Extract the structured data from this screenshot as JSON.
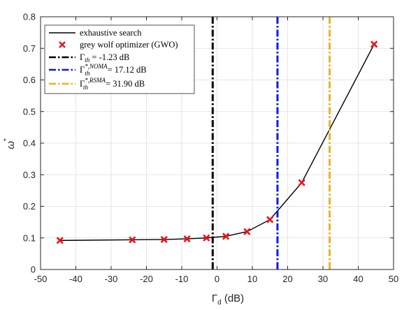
{
  "chart_data": {
    "type": "line",
    "xlabel": "Γ",
    "xlabel_sub": "d",
    "xlabel_unit": "(dB)",
    "ylabel": "ω",
    "ylabel_sup": "*",
    "xlim": [
      -50,
      50
    ],
    "ylim": [
      0,
      0.8
    ],
    "xticks": [
      -50,
      -40,
      -30,
      -20,
      -10,
      0,
      10,
      20,
      30,
      40,
      50
    ],
    "yticks": [
      0,
      0.1,
      0.2,
      0.3,
      0.4,
      0.5,
      0.6,
      0.7,
      0.8
    ],
    "xtick_labels": [
      "-50",
      "-40",
      "-30",
      "-20",
      "-10",
      "0",
      "10",
      "20",
      "30",
      "40",
      "50"
    ],
    "ytick_labels": [
      "0",
      "0.1",
      "0.2",
      "0.3",
      "0.4",
      "0.5",
      "0.6",
      "0.7",
      "0.8"
    ],
    "grid": true,
    "legend_position": "top-left",
    "series": [
      {
        "name": "exhaustive search",
        "style": "line",
        "color": "#000000",
        "x": [
          -44.5,
          -24,
          -15,
          -8.5,
          -3,
          2.5,
          8.5,
          15,
          24,
          44.5
        ],
        "y": [
          0.092,
          0.094,
          0.095,
          0.097,
          0.1,
          0.105,
          0.12,
          0.158,
          0.275,
          0.713
        ]
      },
      {
        "name": "grey wolf optimizer (GWO)",
        "style": "marker-x",
        "color": "#e8141b",
        "x": [
          -44.5,
          -24,
          -15,
          -8.5,
          -3,
          2.5,
          8.5,
          15,
          24,
          44.5
        ],
        "y": [
          0.092,
          0.094,
          0.095,
          0.097,
          0.1,
          0.105,
          0.12,
          0.158,
          0.275,
          0.713
        ]
      }
    ],
    "vlines": [
      {
        "x": -1.23,
        "color": "#000000",
        "label_main": "Γ",
        "label_sub": "th",
        "label_value": " = -1.23 dB"
      },
      {
        "x": 17.12,
        "color": "#0a19e8",
        "label_main": "Γ",
        "label_sup": "*,NOMA",
        "label_sub": "th",
        "label_value": " = 17.12 dB"
      },
      {
        "x": 31.9,
        "color": "#edb120",
        "label_main": "Γ",
        "label_sup": "*,RSMA",
        "label_sub": "th",
        "label_value": " = 31.90 dB"
      }
    ]
  }
}
